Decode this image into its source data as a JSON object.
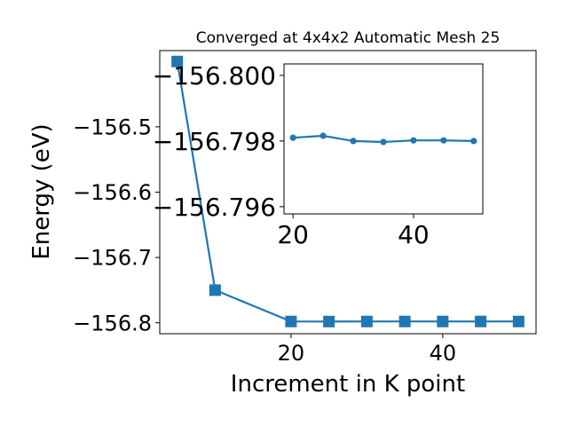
{
  "chart_data": [
    {
      "type": "line",
      "title": "Converged at 4x4x2 Automatic Mesh 25",
      "xlabel": "Increment in K point",
      "ylabel": "Energy (eV)",
      "marker": "square",
      "color": "#1f77b4",
      "xlim": [
        2.7,
        52.3
      ],
      "ylim": [
        -156.8167,
        -156.3833
      ],
      "xticks": [
        20,
        40
      ],
      "yticks": [
        -156.5,
        -156.6,
        -156.7,
        -156.8
      ],
      "ytick_labels": [
        "−156.5",
        "−156.6",
        "−156.7",
        "−156.8"
      ],
      "x": [
        5,
        10,
        20,
        25,
        30,
        35,
        40,
        45,
        50
      ],
      "values": [
        -156.4,
        -156.75,
        -156.798,
        -156.7981,
        -156.798,
        -156.798,
        -156.798,
        -156.798,
        -156.798
      ]
    },
    {
      "type": "line",
      "title": "",
      "xlabel": "",
      "ylabel": "",
      "marker": "circle",
      "color": "#1f77b4",
      "xlim": [
        18.5,
        51.5
      ],
      "ylim": [
        -156.79578,
        -156.80035
      ],
      "xticks": [
        20,
        40
      ],
      "yticks": [
        -156.8,
        -156.798,
        -156.796
      ],
      "ytick_labels": [
        "−156.800",
        "−156.798",
        "−156.796"
      ],
      "x": [
        20,
        25,
        30,
        35,
        40,
        45,
        50
      ],
      "values": [
        -156.7981,
        -156.79816,
        -156.798,
        -156.79797,
        -156.79802,
        -156.79802,
        -156.798
      ]
    }
  ]
}
